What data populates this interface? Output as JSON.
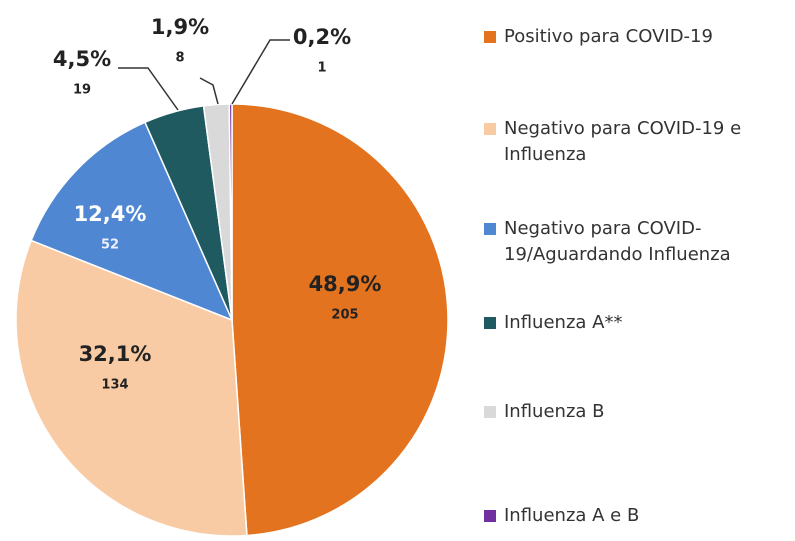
{
  "chart_data": {
    "type": "pie",
    "categories": [
      "Positivo para COVID-19",
      "Negativo para COVID-19 e Influenza",
      "Negativo para COVID-19/Aguardando Influenza",
      "Influenza A**",
      "Influenza B",
      "Influenza A e B"
    ],
    "values": [
      48.9,
      32.1,
      12.4,
      4.5,
      1.9,
      0.2
    ],
    "value_labels": [
      "48,9%",
      "32,1%",
      "12,4%",
      "4,5%",
      "1,9%",
      "0,2%"
    ],
    "counts": [
      205,
      134,
      52,
      19,
      8,
      1
    ],
    "colors": [
      "#e3731f",
      "#f8cba5",
      "#4f87d2",
      "#1f5a60",
      "#d9d9d9",
      "#7030a0"
    ],
    "legend": "right"
  }
}
